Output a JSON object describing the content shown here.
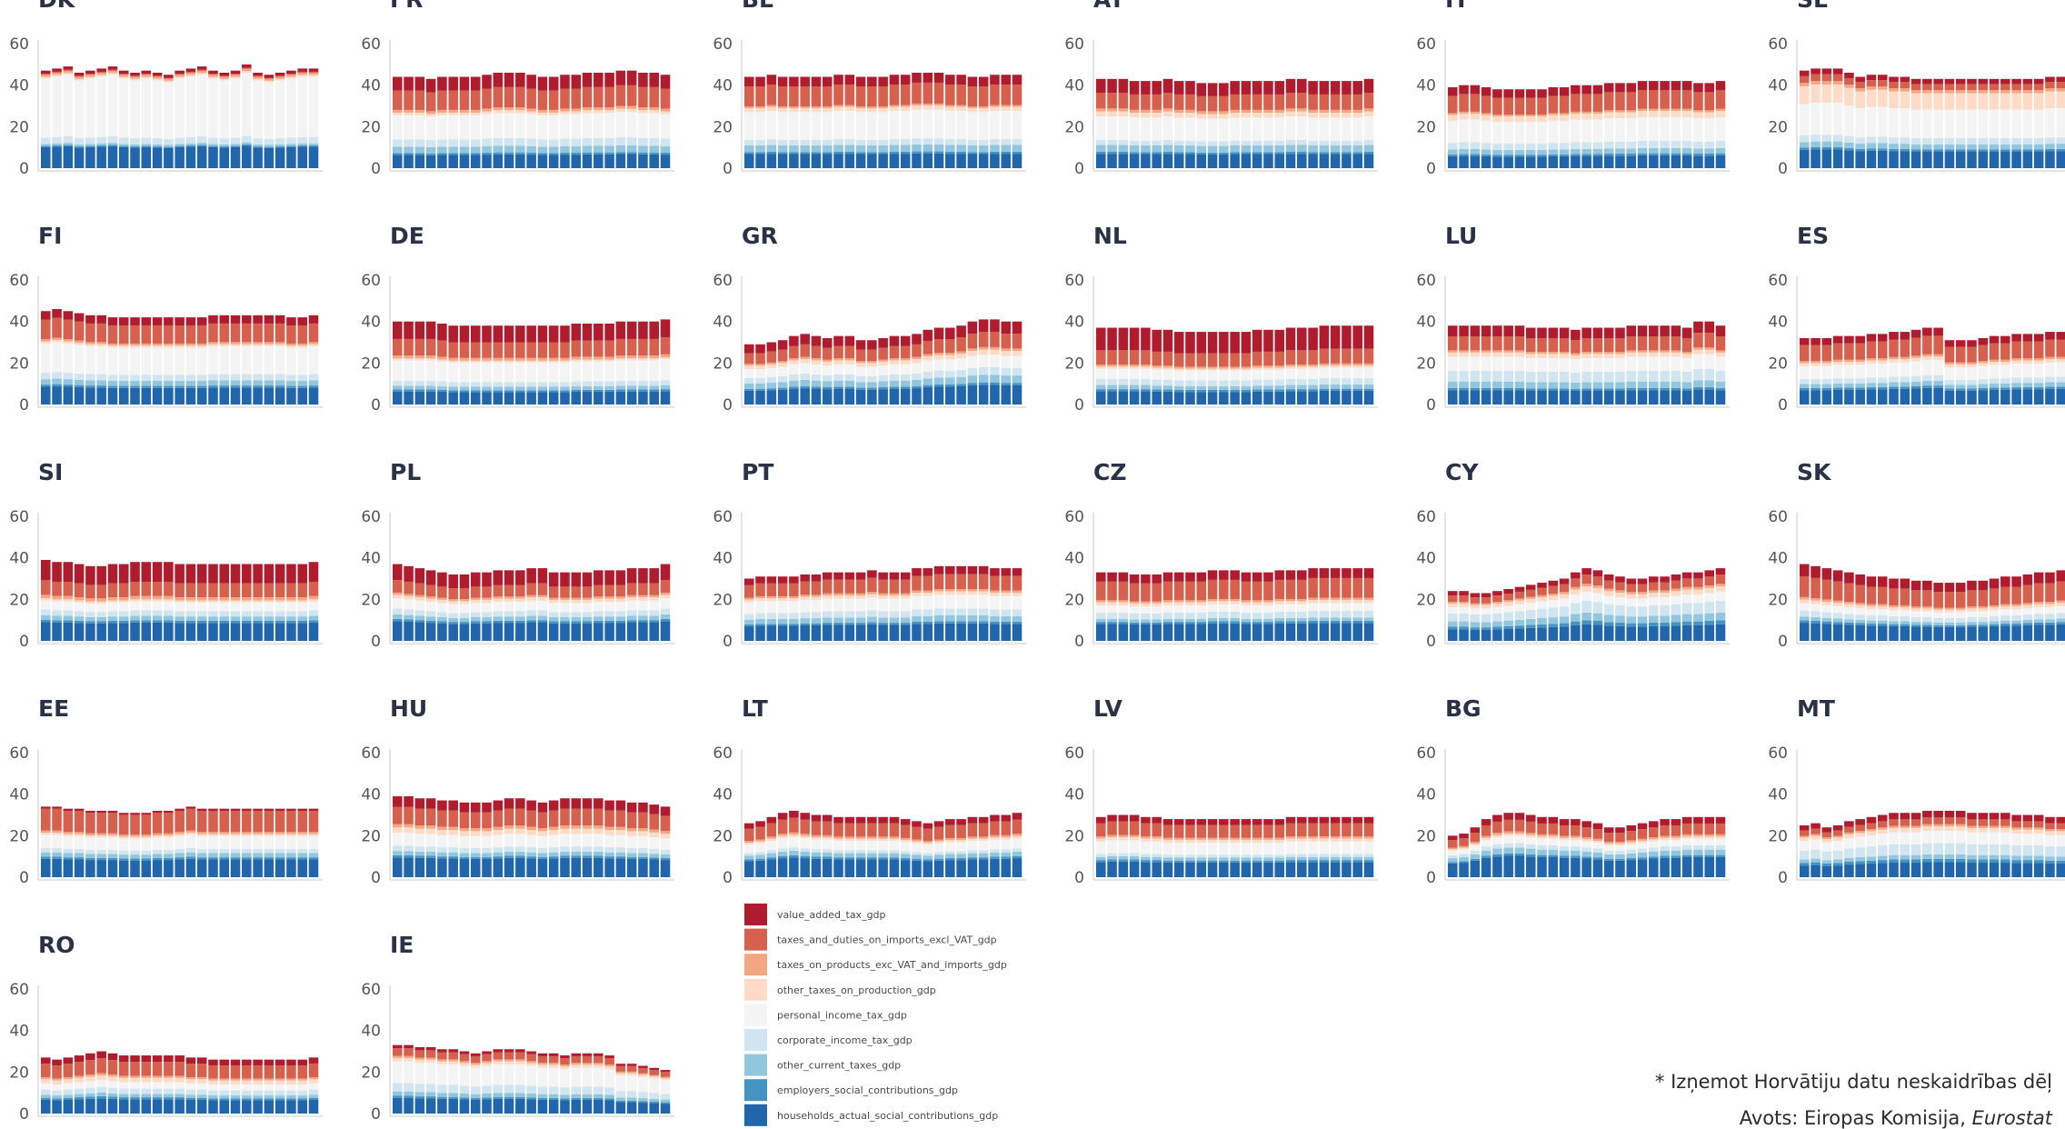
{
  "legend": {
    "items": [
      {
        "label": "value_added_tax_gdp",
        "color": "#b01c2e"
      },
      {
        "label": "taxes_and_duties_on_imports_excl_VAT_gdp",
        "color": "#d6604d"
      },
      {
        "label": "taxes_on_products_exc_VAT_and_imports_gdp",
        "color": "#f4a582"
      },
      {
        "label": "other_taxes_on_production_gdp",
        "color": "#fddbc7"
      },
      {
        "label": "personal_income_tax_gdp",
        "color": "#f4f4f4"
      },
      {
        "label": "corporate_income_tax_gdp",
        "color": "#d1e5f0"
      },
      {
        "label": "other_current_taxes_gdp",
        "color": "#92c5de"
      },
      {
        "label": "employers_social_contributions_gdp",
        "color": "#4393c3"
      },
      {
        "label": "households_actual_social_contributions_gdp",
        "color": "#2166ac"
      }
    ]
  },
  "footnote": {
    "note": "* Izņemot Horvātiju datu neskaidrības dēļ",
    "source_prefix": "Avots: Eiropas Komisija, ",
    "source_italic": "Eurostat"
  },
  "chart_data": {
    "type": "bar",
    "stacked": true,
    "facets": 26,
    "bars_per_panel": 25,
    "ylim": [
      0,
      60
    ],
    "yticks": [
      0,
      20,
      40,
      60
    ],
    "panels": [
      {
        "title": "DK",
        "stack": [
          1.5,
          0.5,
          1,
          0.8,
          28.5,
          3,
          1,
          0.5,
          10.2
        ],
        "total_trend": [
          47,
          48,
          49,
          46,
          47,
          48,
          49,
          47,
          46,
          47,
          46,
          45,
          47,
          48,
          49,
          47,
          46,
          47,
          50,
          46,
          45,
          46,
          47,
          48,
          48
        ]
      },
      {
        "title": "FR",
        "stack": [
          7.5,
          10.5,
          1.5,
          1.5,
          13,
          4,
          3.5,
          1,
          7.2
        ],
        "total_trend": [
          44,
          44,
          44,
          43,
          44,
          44,
          44,
          44,
          45,
          46,
          46,
          46,
          45,
          44,
          44,
          45,
          45,
          46,
          46,
          46,
          47,
          47,
          46,
          46,
          45
        ]
      },
      {
        "title": "BE",
        "stack": [
          5,
          10.5,
          1,
          2,
          14.5,
          3,
          3.5,
          1,
          7.4
        ],
        "total_trend": [
          44,
          44,
          45,
          44,
          44,
          44,
          44,
          44,
          45,
          45,
          44,
          44,
          44,
          45,
          45,
          46,
          46,
          46,
          45,
          45,
          44,
          44,
          45,
          45,
          45
        ]
      },
      {
        "title": "AT",
        "stack": [
          7,
          8,
          1.5,
          2.5,
          12,
          2.5,
          3.5,
          1,
          7.3
        ],
        "total_trend": [
          43,
          43,
          43,
          42,
          42,
          42,
          43,
          42,
          42,
          41,
          41,
          41,
          42,
          42,
          42,
          42,
          42,
          43,
          43,
          42,
          42,
          42,
          42,
          42,
          43
        ]
      },
      {
        "title": "IT",
        "stack": [
          4.5,
          9,
          1,
          3,
          11.5,
          3.5,
          2.5,
          1,
          6.2
        ],
        "total_trend": [
          39,
          40,
          40,
          39,
          38,
          38,
          38,
          38,
          38,
          39,
          39,
          40,
          40,
          40,
          41,
          41,
          41,
          42,
          42,
          42,
          42,
          42,
          41,
          41,
          42
        ]
      },
      {
        "title": "SE",
        "stack": [
          2.5,
          3,
          1.5,
          8,
          14,
          3,
          2.5,
          1,
          8.2
        ],
        "total_trend": [
          47,
          48,
          48,
          48,
          46,
          44,
          45,
          45,
          44,
          44,
          43,
          43,
          43,
          43,
          43,
          43,
          43,
          43,
          43,
          43,
          43,
          43,
          44,
          44,
          44
        ]
      },
      {
        "title": "FI",
        "stack": [
          4,
          9,
          1,
          1,
          13.5,
          3,
          2.5,
          1,
          8.2
        ],
        "total_trend": [
          45,
          46,
          45,
          44,
          43,
          43,
          42,
          42,
          42,
          42,
          42,
          42,
          42,
          42,
          42,
          43,
          43,
          43,
          43,
          43,
          43,
          43,
          42,
          42,
          43
        ]
      },
      {
        "title": "DE",
        "stack": [
          9,
          8.5,
          1.5,
          1,
          10.5,
          2.5,
          2,
          1,
          6.7
        ],
        "total_trend": [
          40,
          40,
          40,
          40,
          39,
          38,
          38,
          38,
          38,
          38,
          38,
          38,
          38,
          38,
          38,
          38,
          39,
          39,
          39,
          39,
          40,
          40,
          40,
          40,
          41
        ]
      },
      {
        "title": "GR",
        "stack": [
          5,
          6,
          1,
          2,
          5,
          3,
          3,
          1,
          7.8
        ],
        "total_trend": [
          29,
          29,
          30,
          31,
          33,
          34,
          33,
          32,
          33,
          33,
          31,
          31,
          32,
          33,
          33,
          34,
          36,
          37,
          37,
          38,
          40,
          41,
          41,
          40,
          40
        ]
      },
      {
        "title": "NL",
        "stack": [
          11,
          7,
          1,
          1,
          5,
          3,
          2,
          1,
          6.5
        ],
        "total_trend": [
          37,
          37,
          37,
          37,
          37,
          36,
          36,
          35,
          35,
          35,
          35,
          35,
          35,
          35,
          36,
          36,
          36,
          37,
          37,
          37,
          38,
          38,
          38,
          38,
          38
        ]
      },
      {
        "title": "LU",
        "stack": [
          5,
          6.5,
          1,
          2,
          6.5,
          5,
          3,
          1,
          6.7
        ],
        "total_trend": [
          38,
          38,
          38,
          38,
          38,
          38,
          38,
          37,
          37,
          37,
          37,
          36,
          37,
          37,
          37,
          37,
          38,
          38,
          38,
          38,
          38,
          37,
          40,
          40,
          38
        ]
      },
      {
        "title": "ES",
        "stack": [
          3.5,
          8,
          1,
          1.5,
          6.5,
          2.5,
          2,
          1,
          7.2
        ],
        "total_trend": [
          32,
          32,
          32,
          33,
          33,
          33,
          34,
          34,
          35,
          35,
          36,
          37,
          37,
          31,
          31,
          31,
          32,
          33,
          33,
          34,
          34,
          34,
          35,
          35,
          35
        ]
      },
      {
        "title": "SI",
        "stack": [
          9,
          6.5,
          1.5,
          1,
          4,
          2.5,
          2,
          1,
          8.4
        ],
        "total_trend": [
          39,
          38,
          38,
          37,
          36,
          36,
          37,
          37,
          38,
          38,
          38,
          38,
          37,
          37,
          37,
          37,
          37,
          37,
          37,
          37,
          37,
          37,
          37,
          37,
          38
        ]
      },
      {
        "title": "PL",
        "stack": [
          7,
          5.5,
          1,
          1.5,
          4.5,
          2.5,
          2,
          1,
          8.6
        ],
        "total_trend": [
          37,
          36,
          35,
          34,
          33,
          32,
          32,
          33,
          33,
          34,
          34,
          34,
          35,
          35,
          33,
          33,
          33,
          33,
          34,
          34,
          34,
          35,
          35,
          35,
          37
        ]
      },
      {
        "title": "PT",
        "stack": [
          3.5,
          6.5,
          1,
          1.5,
          6,
          3,
          2.5,
          1,
          7.6
        ],
        "total_trend": [
          30,
          31,
          31,
          31,
          31,
          32,
          32,
          33,
          33,
          33,
          33,
          34,
          33,
          33,
          33,
          35,
          35,
          36,
          36,
          36,
          36,
          36,
          35,
          35,
          35
        ]
      },
      {
        "title": "CZ",
        "stack": [
          4.5,
          9,
          1,
          1.5,
          3.5,
          3,
          1.5,
          1,
          8.2
        ],
        "total_trend": [
          33,
          33,
          33,
          32,
          32,
          32,
          33,
          33,
          33,
          33,
          34,
          34,
          34,
          33,
          33,
          33,
          34,
          34,
          34,
          35,
          35,
          35,
          35,
          35,
          35
        ]
      },
      {
        "title": "CY",
        "stack": [
          2.5,
          3.5,
          1,
          2,
          3.5,
          4.5,
          3,
          1.5,
          6.4
        ],
        "total_trend": [
          24,
          24,
          23,
          23,
          24,
          25,
          26,
          27,
          28,
          29,
          30,
          33,
          35,
          34,
          32,
          31,
          30,
          30,
          31,
          31,
          32,
          33,
          33,
          34,
          35
        ]
      },
      {
        "title": "SK",
        "stack": [
          5,
          8.5,
          1,
          1.5,
          3,
          2.5,
          1.5,
          1,
          7.4
        ],
        "total_trend": [
          37,
          36,
          35,
          34,
          33,
          32,
          31,
          31,
          30,
          30,
          29,
          29,
          28,
          28,
          28,
          29,
          29,
          30,
          31,
          31,
          32,
          33,
          33,
          34,
          34
        ]
      },
      {
        "title": "EE",
        "stack": [
          1,
          10,
          1,
          1,
          6,
          2,
          2,
          1,
          8.4
        ],
        "total_trend": [
          34,
          34,
          33,
          33,
          32,
          32,
          32,
          31,
          31,
          31,
          32,
          32,
          33,
          34,
          33,
          33,
          33,
          33,
          33,
          33,
          33,
          33,
          33,
          33,
          33
        ]
      },
      {
        "title": "HU",
        "stack": [
          5,
          8,
          1.5,
          2.5,
          6,
          2.5,
          2,
          1,
          9.2
        ],
        "total_trend": [
          39,
          39,
          38,
          38,
          37,
          37,
          36,
          36,
          36,
          37,
          38,
          38,
          37,
          36,
          37,
          38,
          38,
          38,
          38,
          37,
          37,
          36,
          36,
          35,
          34
        ]
      },
      {
        "title": "LT",
        "stack": [
          3,
          6.5,
          1,
          1,
          4.5,
          1.5,
          2,
          1,
          8.6
        ],
        "total_trend": [
          26,
          27,
          29,
          31,
          32,
          31,
          30,
          30,
          29,
          29,
          29,
          29,
          29,
          29,
          28,
          27,
          26,
          27,
          28,
          28,
          29,
          29,
          30,
          30,
          31
        ]
      },
      {
        "title": "LV",
        "stack": [
          3,
          6.5,
          1,
          1.5,
          6,
          1.5,
          1.5,
          1,
          7.4
        ],
        "total_trend": [
          29,
          30,
          30,
          30,
          29,
          29,
          28,
          28,
          28,
          28,
          28,
          28,
          28,
          28,
          28,
          28,
          28,
          29,
          29,
          29,
          29,
          29,
          29,
          29,
          29
        ]
      },
      {
        "title": "BG",
        "stack": [
          3,
          5,
          1,
          1,
          3,
          2,
          2.5,
          1,
          9.2
        ],
        "total_trend": [
          20,
          21,
          24,
          28,
          30,
          31,
          31,
          30,
          29,
          29,
          28,
          28,
          27,
          26,
          24,
          24,
          25,
          26,
          27,
          28,
          28,
          29,
          29,
          29,
          29
        ]
      },
      {
        "title": "MT",
        "stack": [
          3,
          3,
          1,
          2,
          5.5,
          5,
          2,
          1.5,
          6.7
        ],
        "total_trend": [
          25,
          26,
          24,
          25,
          27,
          28,
          29,
          30,
          31,
          31,
          31,
          32,
          32,
          32,
          32,
          31,
          31,
          31,
          31,
          30,
          30,
          30,
          29,
          29,
          29
        ]
      },
      {
        "title": "RO",
        "stack": [
          3,
          6.5,
          1,
          2,
          3,
          2.5,
          1.5,
          1,
          6.6
        ],
        "total_trend": [
          27,
          26,
          27,
          28,
          29,
          30,
          29,
          28,
          28,
          28,
          28,
          28,
          28,
          27,
          27,
          26,
          26,
          26,
          26,
          26,
          26,
          26,
          26,
          26,
          27
        ]
      },
      {
        "title": "IE",
        "stack": [
          1.5,
          3.5,
          1,
          1.5,
          10,
          4,
          2,
          1,
          7.2
        ],
        "total_trend": [
          33,
          33,
          32,
          32,
          31,
          31,
          30,
          29,
          30,
          31,
          31,
          31,
          30,
          29,
          29,
          28,
          29,
          29,
          29,
          28,
          24,
          24,
          23,
          22,
          21
        ]
      }
    ]
  }
}
